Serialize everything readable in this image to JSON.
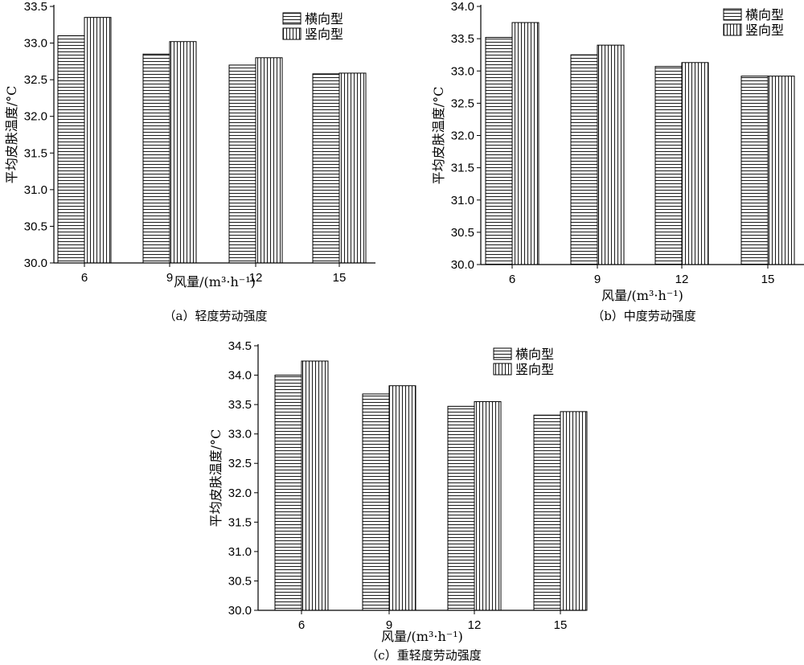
{
  "chart_data": [
    {
      "type": "bar",
      "caption": "（a）轻度劳动强度",
      "xlabel": "风量/(m³·h⁻¹)",
      "ylabel": "平均皮肤温度/°C",
      "categories": [
        "6",
        "9",
        "12",
        "15"
      ],
      "ylim": [
        30.0,
        33.5
      ],
      "yticks": [
        "30.0",
        "30.5",
        "31.0",
        "31.5",
        "32.0",
        "32.5",
        "33.0",
        "33.5"
      ],
      "legend_position": "top-right",
      "series": [
        {
          "name": "横向型",
          "pattern": "horizontal-stripes",
          "values": [
            33.1,
            32.85,
            32.7,
            32.58
          ]
        },
        {
          "name": "竖向型",
          "pattern": "vertical-stripes",
          "values": [
            33.35,
            33.02,
            32.8,
            32.59
          ]
        }
      ]
    },
    {
      "type": "bar",
      "caption": "（b）中度劳动强度",
      "xlabel": "风量/(m³·h⁻¹)",
      "ylabel": "平均皮肤温度/°C",
      "categories": [
        "6",
        "9",
        "12",
        "15"
      ],
      "ylim": [
        30.0,
        34.0
      ],
      "yticks": [
        "30.0",
        "30.5",
        "31.0",
        "31.5",
        "32.0",
        "32.5",
        "33.0",
        "33.5",
        "34.0"
      ],
      "legend_position": "top-right",
      "series": [
        {
          "name": "横向型",
          "pattern": "horizontal-stripes",
          "values": [
            33.52,
            33.25,
            33.07,
            32.92
          ]
        },
        {
          "name": "竖向型",
          "pattern": "vertical-stripes",
          "values": [
            33.75,
            33.4,
            33.13,
            32.92
          ]
        }
      ]
    },
    {
      "type": "bar",
      "caption": "（c）重轻度劳动强度",
      "xlabel": "风量/(m³·h⁻¹)",
      "ylabel": "平均皮肤温度/°C",
      "categories": [
        "6",
        "9",
        "12",
        "15"
      ],
      "ylim": [
        30.0,
        34.5
      ],
      "yticks": [
        "30.0",
        "30.5",
        "31.0",
        "31.5",
        "32.0",
        "32.5",
        "33.0",
        "33.5",
        "34.0",
        "34.5"
      ],
      "legend_position": "top-right",
      "series": [
        {
          "name": "横向型",
          "pattern": "horizontal-stripes",
          "values": [
            34.0,
            33.68,
            33.47,
            33.32
          ]
        },
        {
          "name": "竖向型",
          "pattern": "vertical-stripes",
          "values": [
            34.24,
            33.82,
            33.55,
            33.38
          ]
        }
      ]
    }
  ]
}
